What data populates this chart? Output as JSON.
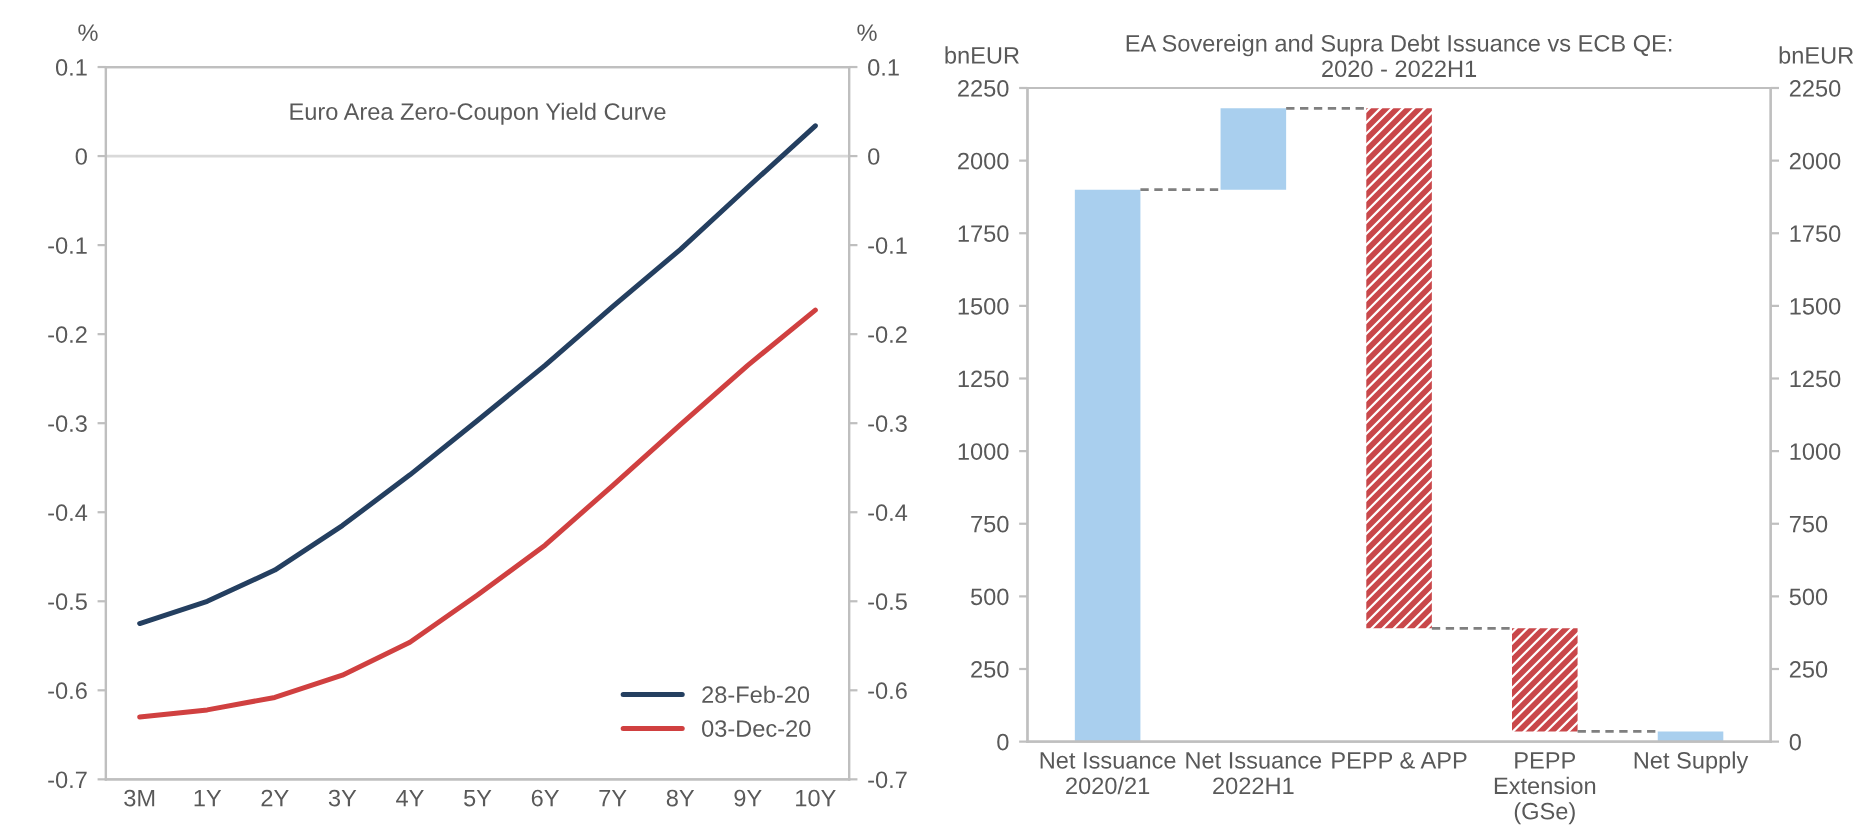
{
  "chart_data": [
    {
      "type": "line",
      "title": "Euro Area Zero-Coupon Yield Curve",
      "ylabel": "%",
      "y2label": "%",
      "categories": [
        "3M",
        "1Y",
        "2Y",
        "3Y",
        "4Y",
        "5Y",
        "6Y",
        "7Y",
        "8Y",
        "9Y",
        "10Y"
      ],
      "series": [
        {
          "name": "28-Feb-20",
          "color": "#243f60",
          "values": [
            -0.525,
            -0.5,
            -0.465,
            -0.415,
            -0.358,
            -0.297,
            -0.235,
            -0.169,
            -0.105,
            -0.035,
            0.034
          ]
        },
        {
          "name": "03-Dec-20",
          "color": "#d04040",
          "values": [
            -0.63,
            -0.622,
            -0.608,
            -0.583,
            -0.546,
            -0.493,
            -0.437,
            -0.37,
            -0.302,
            -0.235,
            -0.173
          ]
        }
      ],
      "ylim": [
        -0.7,
        0.1
      ],
      "yticks": [
        -0.7,
        -0.6,
        -0.5,
        -0.4,
        -0.3,
        -0.2,
        -0.1,
        0,
        0.1
      ],
      "y2lim": [
        -0.7,
        0.1
      ],
      "y2ticks": [
        -0.7,
        -0.6,
        -0.5,
        -0.4,
        -0.3,
        -0.2,
        -0.1,
        0,
        0.1
      ],
      "ref_lines": [
        {
          "axis": "y",
          "value": 0,
          "color": "#d9d9d9"
        }
      ],
      "legend": "bottom right",
      "grid": false,
      "line_style": "solid",
      "marker": "none"
    },
    {
      "type": "bar",
      "title": "EA Sovereign and Supra Debt Issuance vs ECB QE:\n2020 - 2022H1",
      "ylabel": "bnEUR",
      "y2label": "bnEUR",
      "categories": [
        "Net Issuance\n2020/21",
        "Net Issuance\n2022H1",
        "PEPP & APP",
        "PEPP\nExtension\n(GSe)",
        "Net Supply"
      ],
      "base": [
        0,
        1900,
        2180,
        390,
        0
      ],
      "values": [
        1900,
        280,
        -1790,
        -355,
        35
      ],
      "colors": [
        "#a9cfee",
        "#a9cfee",
        "#c9474a",
        "#c9474a",
        "#a9cfee"
      ],
      "ylim": [
        0,
        2250
      ],
      "yticks": [
        0,
        250,
        500,
        750,
        1000,
        1250,
        1500,
        1750,
        2000,
        2250
      ],
      "y2lim": [
        0,
        2250
      ],
      "y2ticks": [
        0,
        250,
        500,
        750,
        1000,
        1250,
        1500,
        1750,
        2000,
        2250
      ],
      "grid": false
    }
  ]
}
